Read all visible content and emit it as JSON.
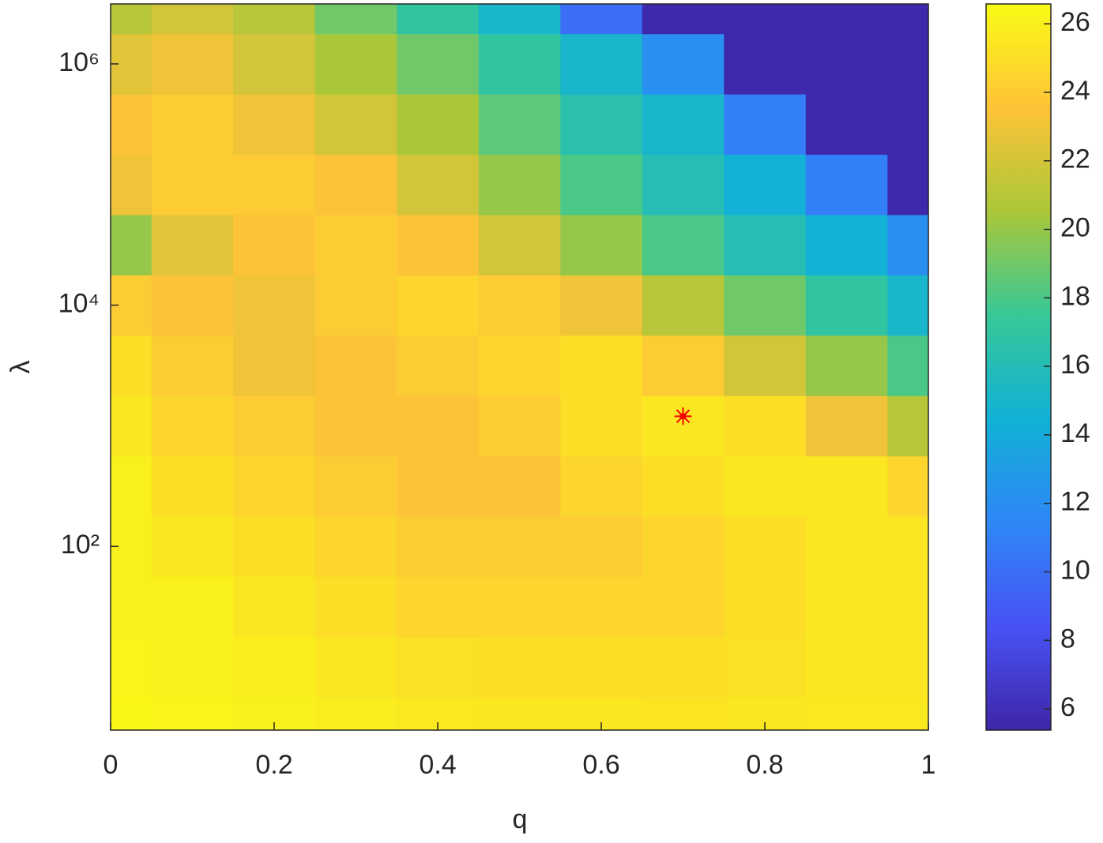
{
  "chart_data": {
    "type": "contour",
    "xlabel": "q",
    "ylabel": "λ",
    "x": [
      0,
      0.1,
      0.2,
      0.3,
      0.4,
      0.5,
      0.6,
      0.7,
      0.8,
      0.9,
      1
    ],
    "y": [
      3.16,
      10,
      31.6,
      100,
      316,
      1000,
      3162,
      10000,
      31623,
      100000,
      316228,
      1000000,
      3162278
    ],
    "z": [
      [
        26.3,
        26.2,
        26,
        25.8,
        25.6,
        25.5,
        25.5,
        25.4,
        25.5,
        25.6,
        25.6
      ],
      [
        26.2,
        26,
        25.8,
        25.5,
        25.2,
        25,
        25,
        25,
        25.2,
        25.5,
        25.5
      ],
      [
        26,
        26,
        25.5,
        25,
        24.5,
        24.5,
        24.5,
        24.5,
        25,
        25.5,
        25.5
      ],
      [
        26,
        25.5,
        25,
        24.5,
        24,
        24,
        24,
        24.5,
        25,
        25.5,
        25.5
      ],
      [
        26,
        25,
        24.5,
        24,
        23.5,
        23.5,
        24.5,
        25,
        25.5,
        25.5,
        24.5
      ],
      [
        25.5,
        24.5,
        24,
        23.5,
        23.5,
        24,
        25,
        25.5,
        25,
        23,
        21
      ],
      [
        25,
        24,
        23,
        23.5,
        24,
        24.5,
        25,
        24,
        22,
        20,
        18
      ],
      [
        24,
        23.5,
        23,
        24,
        24.5,
        24,
        23,
        21,
        19,
        17,
        15
      ],
      [
        20,
        22.5,
        23.5,
        24,
        23.5,
        22,
        20,
        18,
        16,
        14.5,
        12
      ],
      [
        23,
        24,
        24,
        23.5,
        22,
        20,
        18,
        16,
        14.5,
        11,
        5.5
      ],
      [
        23.5,
        24,
        23,
        22,
        20.5,
        18.5,
        16.5,
        15,
        11,
        5.5,
        5.5
      ],
      [
        22.5,
        23,
        22,
        20.5,
        19,
        17,
        15,
        12,
        5.5,
        5.5,
        5.5
      ],
      [
        21,
        22,
        21,
        19,
        17,
        15,
        10,
        5.5,
        5.5,
        5.5,
        5.5
      ]
    ],
    "xlim": [
      0,
      1
    ],
    "xticks": [
      0,
      0.2,
      0.4,
      0.6,
      0.8,
      1
    ],
    "ylim": [
      3,
      3140000
    ],
    "yscale": "log",
    "yticks": [
      {
        "value": 100,
        "label": "10²"
      },
      {
        "value": 10000,
        "label": "10⁴"
      },
      {
        "value": 1000000,
        "label": "10⁶"
      }
    ],
    "colormap": "parula",
    "clim": [
      5.38,
      26.58
    ],
    "cticks": [
      6,
      8,
      10,
      12,
      14,
      16,
      18,
      20,
      22,
      24,
      26
    ],
    "marker": {
      "x": 0.7,
      "y": 1200,
      "color": "#ff0000"
    }
  }
}
